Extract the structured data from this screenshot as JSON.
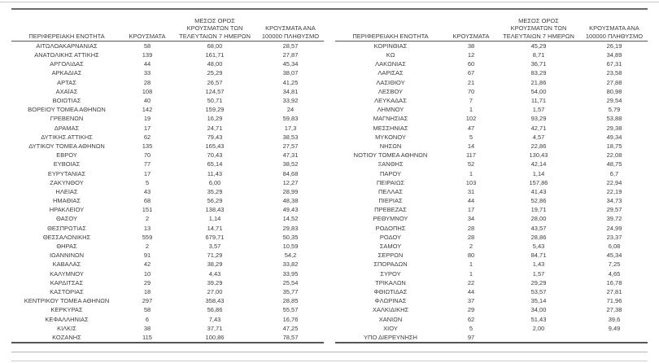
{
  "headers": {
    "region": "ΠΕΡΙΦΕΡΕΙΑΚΗ ΕΝΟΤΗΤΑ",
    "cases": "ΚΡΟΥΣΜΑΤΑ",
    "avg7": "ΜΕΣΟΣ ΟΡΟΣ ΚΡΟΥΣΜΑΤΩΝ ΤΩΝ ΤΕΛΕΥΤΑΙΩΝ 7 ΗΜΕΡΩΝ",
    "per100k": "ΚΡΟΥΣΜΑΤΑ ΑΝΑ 100000 ΠΛΗΘΥΣΜΟ"
  },
  "left_rows": [
    [
      "ΑΙΤΩΛΟΑΚΑΡΝΑΝΙΑΣ",
      "58",
      "68,00",
      "28,57"
    ],
    [
      "ΑΝΑΤΟΛΙΚΗΣ ΑΤΤΙΚΗΣ",
      "139",
      "161,71",
      "27,87"
    ],
    [
      "ΑΡΓΟΛΙΔΑΣ",
      "44",
      "48,00",
      "45,34"
    ],
    [
      "ΑΡΚΑΔΙΑΣ",
      "33",
      "25,29",
      "38,07"
    ],
    [
      "ΑΡΤΑΣ",
      "28",
      "26,57",
      "41,25"
    ],
    [
      "ΑΧΑΪΑΣ",
      "108",
      "124,57",
      "34,81"
    ],
    [
      "ΒΟΙΩΤΙΑΣ",
      "40",
      "50,71",
      "33,92"
    ],
    [
      "ΒΟΡΕΙΟΥ ΤΟΜΕΑ ΑΘΗΝΩΝ",
      "142",
      "159,29",
      "24"
    ],
    [
      "ΓΡΕΒΕΝΩΝ",
      "19",
      "16,29",
      "59,83"
    ],
    [
      "ΔΡΑΜΑΣ",
      "17",
      "24,71",
      "17,3"
    ],
    [
      "ΔΥΤΙΚΗΣ ΑΤΤΙΚΗΣ",
      "62",
      "79,43",
      "38,53"
    ],
    [
      "ΔΥΤΙΚΟΥ ΤΟΜΕΑ ΑΘΗΝΩΝ",
      "135",
      "165,43",
      "27,57"
    ],
    [
      "ΕΒΡΟΥ",
      "70",
      "70,43",
      "47,31"
    ],
    [
      "ΕΥΒΟΙΑΣ",
      "77",
      "65,14",
      "38,52"
    ],
    [
      "ΕΥΡΥΤΑΝΙΑΣ",
      "17",
      "11,43",
      "84,68"
    ],
    [
      "ΖΑΚΥΝΘΟΥ",
      "5",
      "6,00",
      "12,27"
    ],
    [
      "ΗΛΕΙΑΣ",
      "43",
      "35,29",
      "28,99"
    ],
    [
      "ΗΜΑΘΙΑΣ",
      "68",
      "56,29",
      "48,38"
    ],
    [
      "ΗΡΑΚΛΕΙΟΥ",
      "151",
      "138,43",
      "49,43"
    ],
    [
      "ΘΑΣΟΥ",
      "2",
      "1,14",
      "14,52"
    ],
    [
      "ΘΕΣΠΡΩΤΙΑΣ",
      "13",
      "14,71",
      "29,83"
    ],
    [
      "ΘΕΣΣΑΛΟΝΙΚΗΣ",
      "559",
      "679,71",
      "50,35"
    ],
    [
      "ΘΗΡΑΣ",
      "2",
      "3,57",
      "10,59"
    ],
    [
      "ΙΩΑΝΝΙΝΩΝ",
      "91",
      "71,29",
      "54,2"
    ],
    [
      "ΚΑΒΑΛΑΣ",
      "42",
      "38,29",
      "33,82"
    ],
    [
      "ΚΑΛΥΜΝΟΥ",
      "10",
      "4,43",
      "33,95"
    ],
    [
      "ΚΑΡΔΙΤΣΑΣ",
      "29",
      "39,29",
      "25,54"
    ],
    [
      "ΚΑΣΤΟΡΙΑΣ",
      "18",
      "27,00",
      "35,77"
    ],
    [
      "ΚΕΝΤΡΙΚΟΥ ΤΟΜΕΑ ΑΘΗΝΩΝ",
      "297",
      "358,43",
      "28,85"
    ],
    [
      "ΚΕΡΚΥΡΑΣ",
      "58",
      "56,86",
      "55,57"
    ],
    [
      "ΚΕΦΑΛΛΗΝΙΑΣ",
      "6",
      "7,43",
      "16,76"
    ],
    [
      "ΚΙΛΚΙΣ",
      "38",
      "37,71",
      "47,25"
    ],
    [
      "ΚΟΖΑΝΗΣ",
      "115",
      "100,86",
      "78,57"
    ]
  ],
  "right_rows": [
    [
      "ΚΟΡΙΝΘΙΑΣ",
      "38",
      "45,29",
      "26,19"
    ],
    [
      "ΚΩ",
      "12",
      "8,71",
      "34,89"
    ],
    [
      "ΛΑΚΩΝΙΑΣ",
      "60",
      "36,71",
      "67,31"
    ],
    [
      "ΛΑΡΙΣΑΣ",
      "67",
      "83,29",
      "23,58"
    ],
    [
      "ΛΑΣΙΘΙΟΥ",
      "21",
      "21,86",
      "27,88"
    ],
    [
      "ΛΕΣΒΟΥ",
      "70",
      "54,00",
      "80,98"
    ],
    [
      "ΛΕΥΚΑΔΑΣ",
      "7",
      "11,71",
      "29,54"
    ],
    [
      "ΛΗΜΝΟΥ",
      "1",
      "1,57",
      "5,79"
    ],
    [
      "ΜΑΓΝΗΣΙΑΣ",
      "102",
      "93,29",
      "53,88"
    ],
    [
      "ΜΕΣΣΗΝΙΑΣ",
      "47",
      "42,71",
      "29,38"
    ],
    [
      "ΜΥΚΟΝΟΥ",
      "5",
      "4,57",
      "49,34"
    ],
    [
      "ΝΗΣΩΝ",
      "14",
      "22,86",
      "18,75"
    ],
    [
      "ΝΟΤΙΟΥ ΤΟΜΕΑ ΑΘΗΝΩΝ",
      "117",
      "130,43",
      "22,08"
    ],
    [
      "ΞΑΝΘΗΣ",
      "52",
      "42,14",
      "48,75"
    ],
    [
      "ΠΑΡΟΥ",
      "1",
      "1,14",
      "6,7"
    ],
    [
      "ΠΕΙΡΑΙΩΣ",
      "103",
      "157,86",
      "22,94"
    ],
    [
      "ΠΕΛΛΑΣ",
      "31",
      "41,43",
      "22,19"
    ],
    [
      "ΠΙΕΡΙΑΣ",
      "44",
      "52,86",
      "34,73"
    ],
    [
      "ΠΡΕΒΕΖΑΣ",
      "17",
      "19,71",
      "29,57"
    ],
    [
      "ΡΕΘΥΜΝΟΥ",
      "34",
      "28,00",
      "39,72"
    ],
    [
      "ΡΟΔΟΠΗΣ",
      "28",
      "43,57",
      "24,99"
    ],
    [
      "ΡΟΔΟΥ",
      "28",
      "28,86",
      "23,37"
    ],
    [
      "ΣΑΜΟΥ",
      "2",
      "5,43",
      "6,08"
    ],
    [
      "ΣΕΡΡΩΝ",
      "80",
      "84,71",
      "45,34"
    ],
    [
      "ΣΠΟΡΑΔΩΝ",
      "1",
      "1,43",
      "7,25"
    ],
    [
      "ΣΥΡΟΥ",
      "1",
      "1,57",
      "4,65"
    ],
    [
      "ΤΡΙΚΑΛΩΝ",
      "22",
      "29,29",
      "16,78"
    ],
    [
      "ΦΘΙΩΤΙΔΑΣ",
      "44",
      "53,57",
      "27,81"
    ],
    [
      "ΦΛΩΡΙΝΑΣ",
      "37",
      "35,14",
      "71,96"
    ],
    [
      "ΧΑΛΚΙΔΙΚΗΣ",
      "29",
      "34,00",
      "27,38"
    ],
    [
      "ΧΑΝΙΩΝ",
      "62",
      "51,43",
      "39,6"
    ],
    [
      "ΧΙΟΥ",
      "5",
      "2,00",
      "9,49"
    ],
    [
      "ΥΠΟ ΔΙΕΡΕΥΝΗΣΗ",
      "97",
      "",
      ""
    ]
  ]
}
